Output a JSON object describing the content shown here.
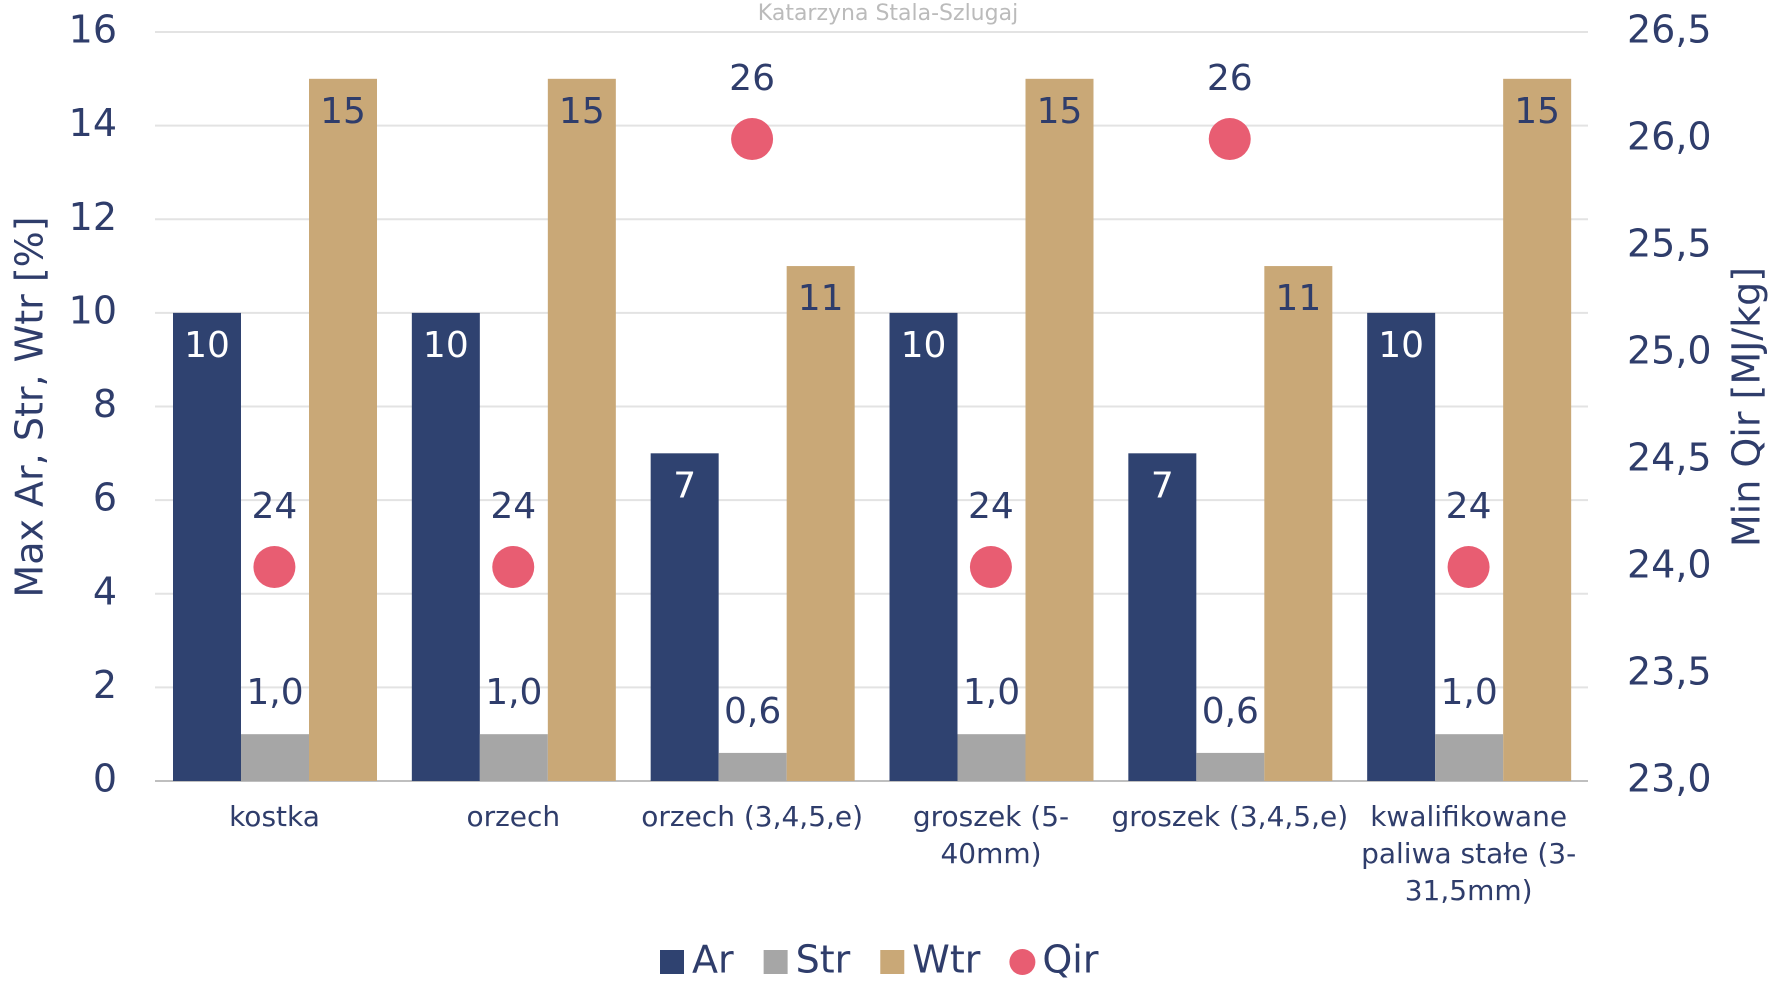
{
  "chart_data": {
    "type": "bar",
    "subtitle": "Katarzyna Stala-Szlugaj",
    "y_label": "Max Ar, Str, Wtr [%]",
    "y2_label": "Min Qir [MJ/kg]",
    "categories": [
      "kostka",
      "orzech",
      "orzech (3,4,5,e)",
      "groszek (5-40mm)",
      "groszek (3,4,5,e)",
      "kwalifikowane paliwa stałe (3-31,5mm)"
    ],
    "series": [
      {
        "name": "Ar",
        "color": "#2f4270",
        "values": [
          10,
          10,
          7,
          10,
          7,
          10
        ]
      },
      {
        "name": "Str",
        "color": "#a6a6a6",
        "values": [
          1.0,
          1.0,
          0.6,
          1.0,
          0.6,
          1.0
        ],
        "value_labels": [
          "1,0",
          "1,0",
          "0,6",
          "1,0",
          "0,6",
          "1,0"
        ]
      },
      {
        "name": "Wtr",
        "color": "#c9a877",
        "values": [
          15,
          15,
          11,
          15,
          11,
          15
        ]
      },
      {
        "name": "Qir",
        "color": "#e85d72",
        "type": "scatter",
        "axis": "y2",
        "values": [
          24,
          24,
          26,
          24,
          26,
          24
        ]
      }
    ],
    "ylim": [
      0,
      16
    ],
    "yticks": [
      0,
      2,
      4,
      6,
      8,
      10,
      12,
      14,
      16
    ],
    "y2lim": [
      23,
      26.5
    ],
    "y2ticks": [
      {
        "value": 23,
        "label": "23,0"
      },
      {
        "value": 23.5,
        "label": "23,5"
      },
      {
        "value": 24,
        "label": "24,0"
      },
      {
        "value": 24.5,
        "label": "24,5"
      },
      {
        "value": 25,
        "label": "25,0"
      },
      {
        "value": 25.5,
        "label": "25,5"
      },
      {
        "value": 26,
        "label": "26,0"
      },
      {
        "value": 26.5,
        "label": "26,5"
      }
    ],
    "grid": true,
    "legend": "bottom"
  }
}
